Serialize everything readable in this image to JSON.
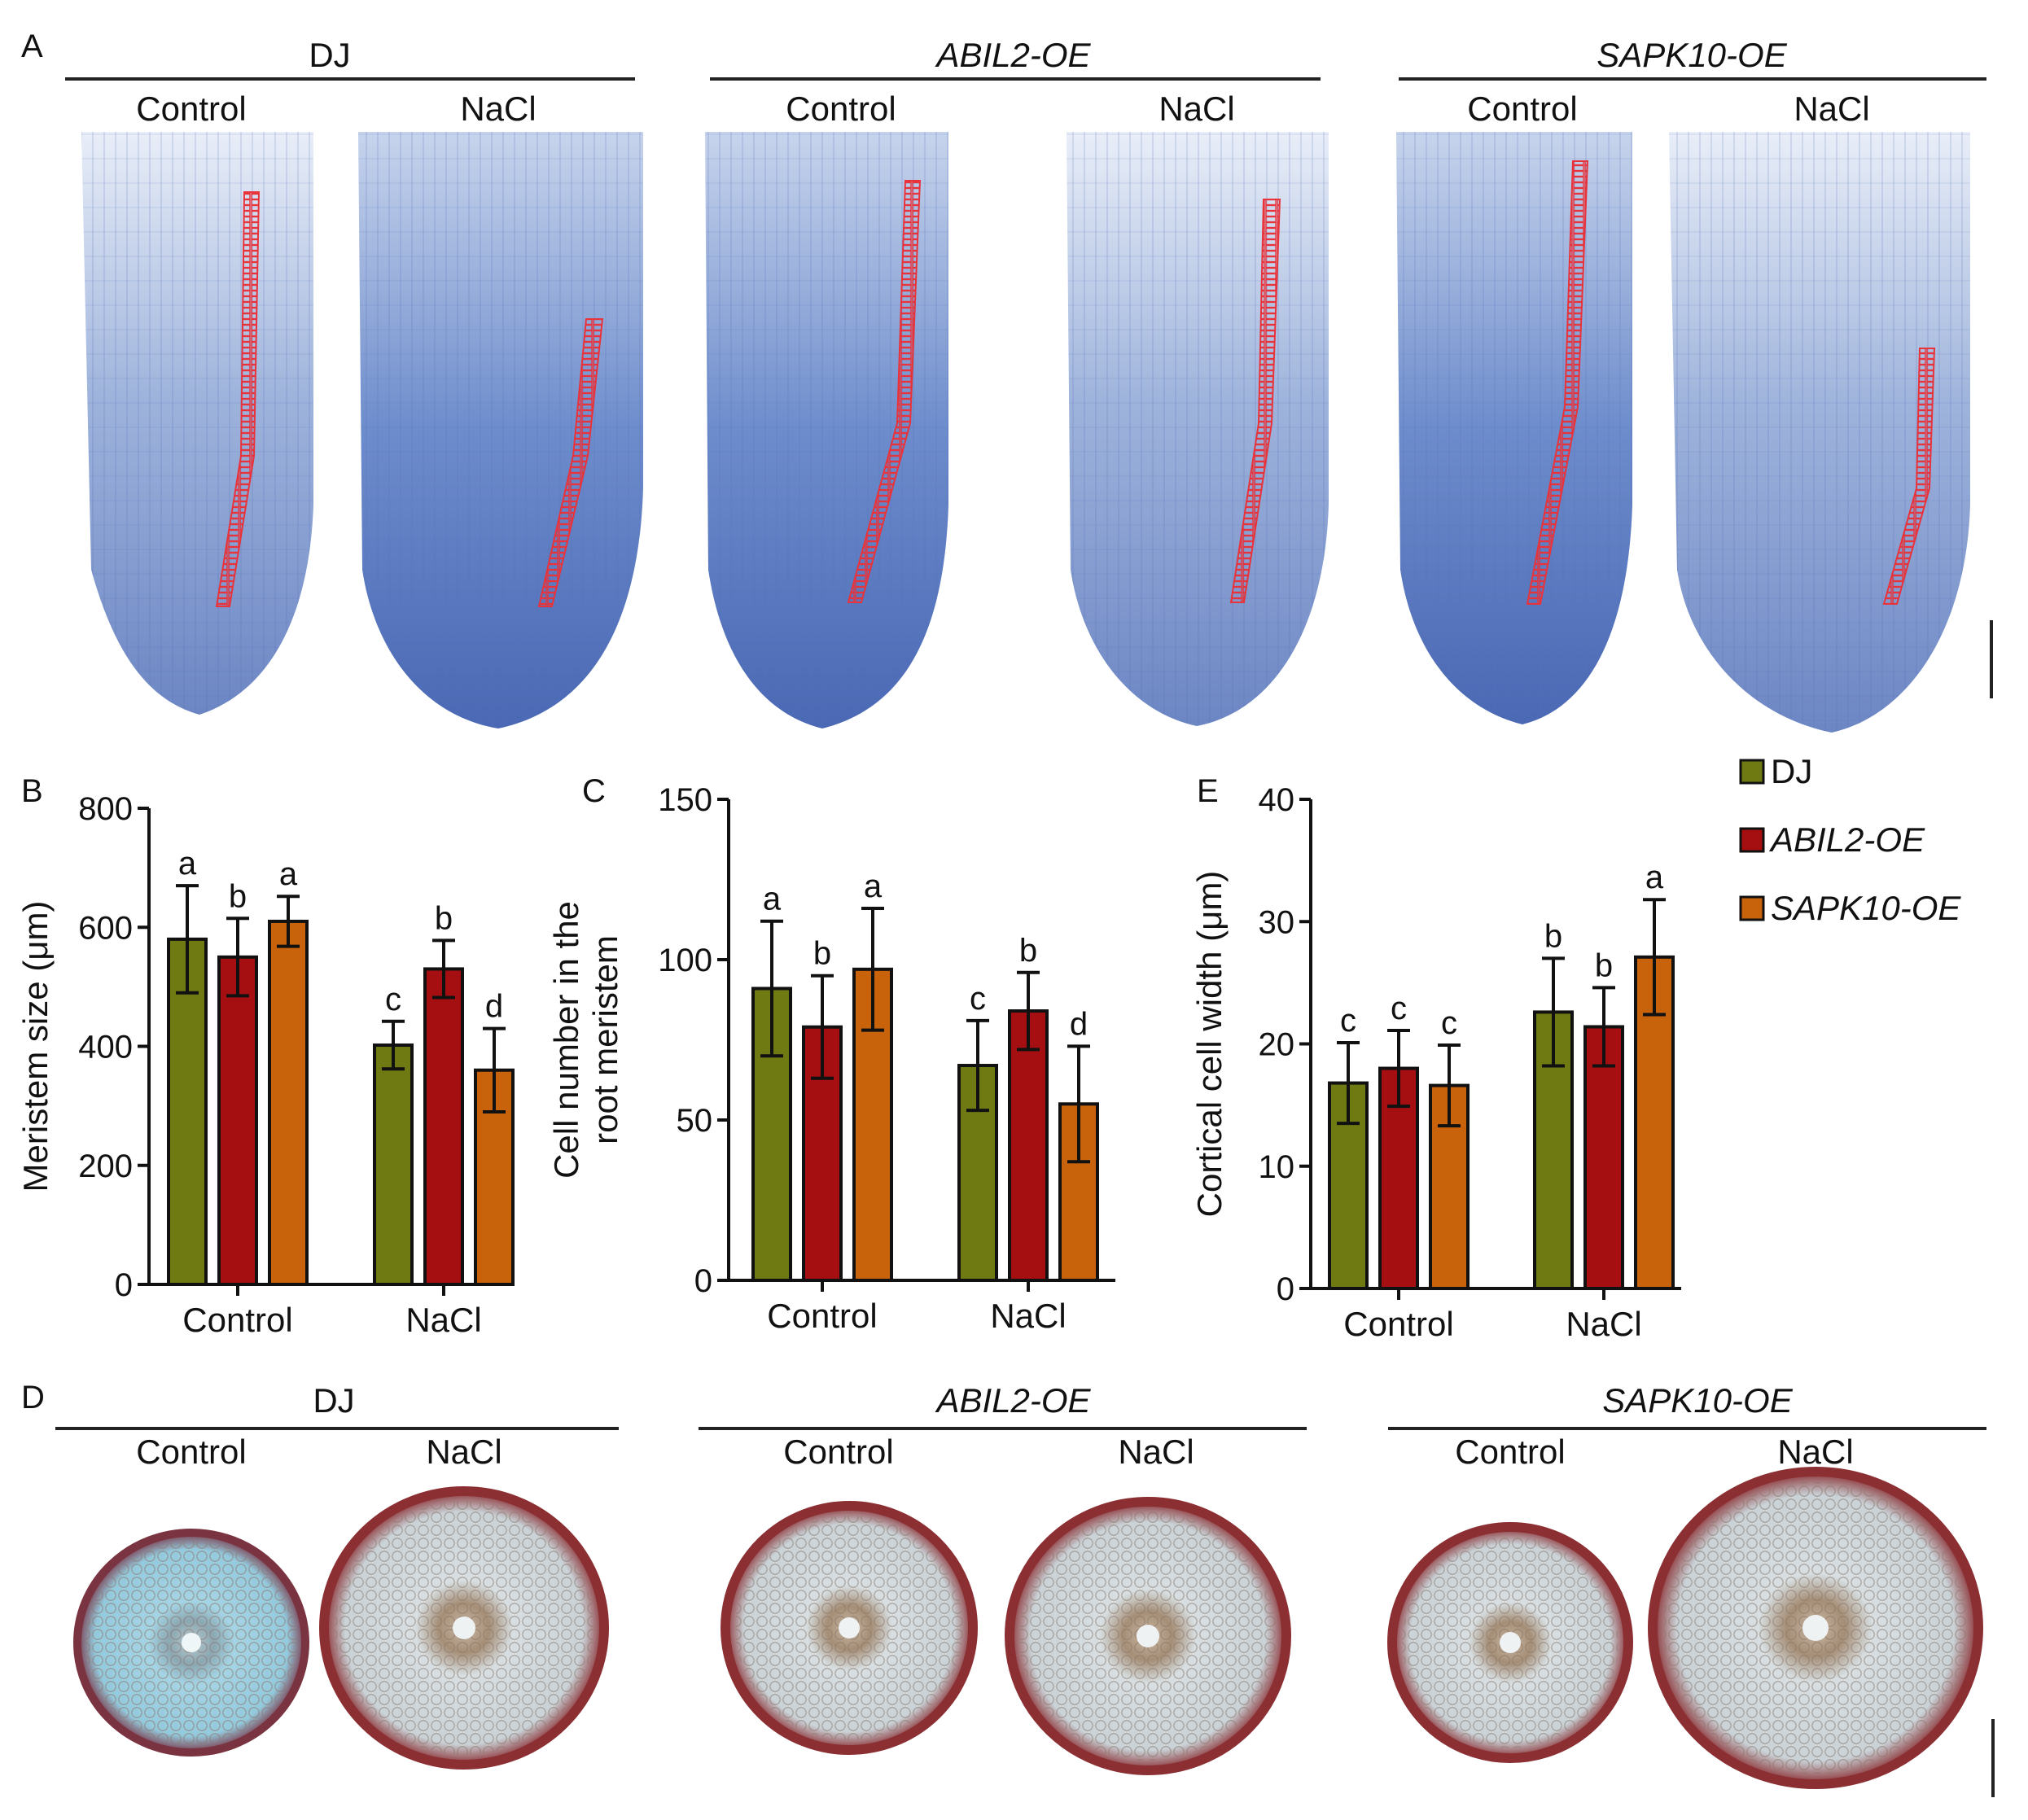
{
  "panel_letters": {
    "a": "A",
    "b": "B",
    "c": "C",
    "d": "D",
    "e": "E"
  },
  "genotypes": [
    "DJ",
    "ABIL2-OE",
    "SAPK10-OE"
  ],
  "treatments": [
    "Control",
    "NaCl"
  ],
  "colors": {
    "DJ": "#6f7a12",
    "ABIL2-OE": "#a50f12",
    "SAPK10-OE": "#c8630b"
  },
  "legend": [
    "DJ",
    "ABIL2-OE",
    "SAPK10-OE"
  ],
  "chart_data": [
    {
      "id": "B",
      "type": "bar",
      "categories": [
        "Control",
        "NaCl"
      ],
      "ylabel": "Meristem size (μm)",
      "ylim": [
        0,
        800
      ],
      "yticks": [
        0,
        200,
        400,
        600,
        800
      ],
      "series": [
        {
          "name": "DJ",
          "values": [
            580,
            402
          ],
          "errors": [
            90,
            40
          ],
          "letters": [
            "a",
            "c"
          ]
        },
        {
          "name": "ABIL2-OE",
          "values": [
            550,
            530
          ],
          "errors": [
            65,
            48
          ],
          "letters": [
            "b",
            "b"
          ]
        },
        {
          "name": "SAPK10-OE",
          "values": [
            610,
            360
          ],
          "errors": [
            42,
            70
          ],
          "letters": [
            "a",
            "d"
          ]
        }
      ]
    },
    {
      "id": "C",
      "type": "bar",
      "categories": [
        "Control",
        "NaCl"
      ],
      "ylabel": [
        "Cell number in the",
        "root meristem"
      ],
      "ylim": [
        0,
        150
      ],
      "yticks": [
        0,
        50,
        100,
        150
      ],
      "series": [
        {
          "name": "DJ",
          "values": [
            91,
            67
          ],
          "errors": [
            21,
            14
          ],
          "letters": [
            "a",
            "c"
          ]
        },
        {
          "name": "ABIL2-OE",
          "values": [
            79,
            84
          ],
          "errors": [
            16,
            12
          ],
          "letters": [
            "b",
            "b"
          ]
        },
        {
          "name": "SAPK10-OE",
          "values": [
            97,
            55
          ],
          "errors": [
            19,
            18
          ],
          "letters": [
            "a",
            "d"
          ]
        }
      ]
    },
    {
      "id": "E",
      "type": "bar",
      "categories": [
        "Control",
        "NaCl"
      ],
      "ylabel": "Cortical cell width (μm)",
      "ylim": [
        0,
        40
      ],
      "yticks": [
        0,
        10,
        20,
        30,
        40
      ],
      "series": [
        {
          "name": "DJ",
          "values": [
            16.8,
            22.6
          ],
          "errors": [
            3.3,
            4.4
          ],
          "letters": [
            "c",
            "b"
          ]
        },
        {
          "name": "ABIL2-OE",
          "values": [
            18.0,
            21.4
          ],
          "errors": [
            3.1,
            3.2
          ],
          "letters": [
            "c",
            "b"
          ]
        },
        {
          "name": "SAPK10-OE",
          "values": [
            16.6,
            27.1
          ],
          "errors": [
            3.3,
            4.7
          ],
          "letters": [
            "c",
            "a"
          ]
        }
      ]
    }
  ]
}
